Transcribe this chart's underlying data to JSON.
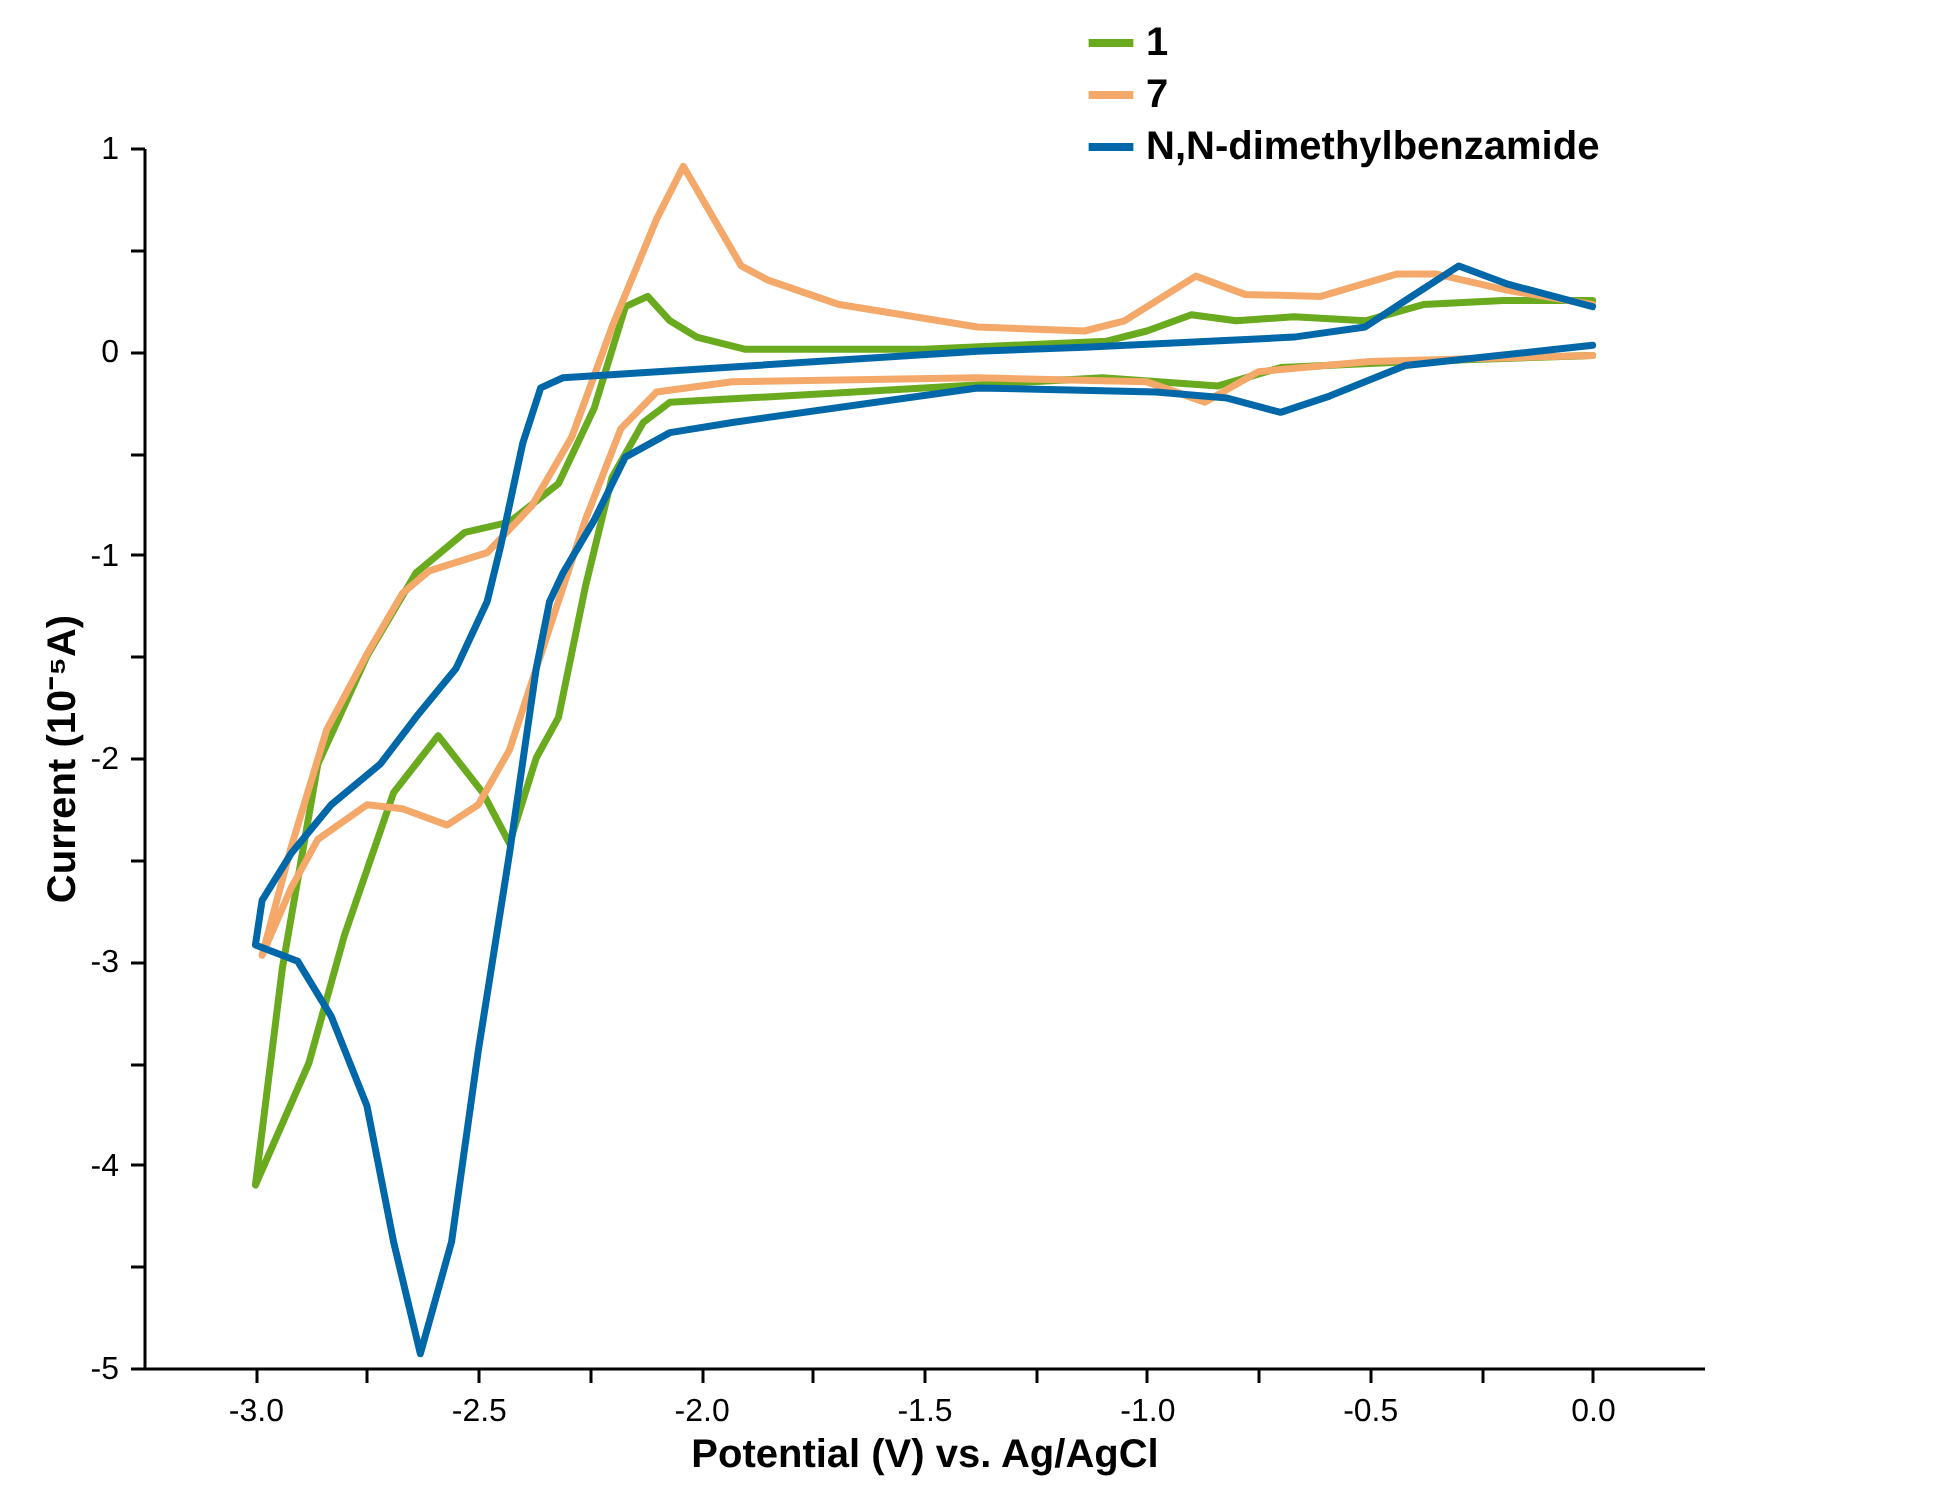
{
  "chart_data": {
    "type": "line",
    "xlabel": "Potential (V) vs. Ag/AgCl",
    "ylabel": "Current (10⁻⁵A)",
    "xlim": [
      -3.25,
      0.25
    ],
    "ylim": [
      -5,
      1
    ],
    "xticks": [
      {
        "value": -3,
        "label": "-3.0"
      },
      {
        "value": -2.75,
        "label": null
      },
      {
        "value": -2.5,
        "label": "-2.5"
      },
      {
        "value": -2.25,
        "label": null
      },
      {
        "value": -2,
        "label": "-2.0"
      },
      {
        "value": -1.75,
        "label": null
      },
      {
        "value": -1.5,
        "label": "-1.5"
      },
      {
        "value": -1.25,
        "label": null
      },
      {
        "value": -1,
        "label": "-1.0"
      },
      {
        "value": -0.75,
        "label": null
      },
      {
        "value": -0.5,
        "label": "-0.5"
      },
      {
        "value": -0.25,
        "label": null
      },
      {
        "value": 0,
        "label": "0.0"
      }
    ],
    "yticks": [
      {
        "value": -5,
        "label": "-5"
      },
      {
        "value": -4.5,
        "label": null
      },
      {
        "value": -4,
        "label": "-4"
      },
      {
        "value": -3.5,
        "label": null
      },
      {
        "value": -3,
        "label": "-3"
      },
      {
        "value": -2.5,
        "label": null
      },
      {
        "value": -2,
        "label": "-2"
      },
      {
        "value": -1.5,
        "label": null
      },
      {
        "value": -1,
        "label": "-1"
      },
      {
        "value": -0.5,
        "label": null
      },
      {
        "value": 0,
        "label": "0"
      },
      {
        "value": 0.5,
        "label": null
      },
      {
        "value": 1,
        "label": "1"
      }
    ],
    "grid": false,
    "legend": "top right",
    "marker": "none",
    "line_style": "solid",
    "series": [
      {
        "name": "1",
        "color": "#6aaa1e",
        "x": [
          0,
          -0.4,
          -0.7,
          -0.84,
          -1.1,
          -1.5,
          -1.9,
          -2.07,
          -2.13,
          -2.2,
          -2.26,
          -2.32,
          -2.37,
          -2.43,
          -2.49,
          -2.59,
          -2.69,
          -2.8,
          -2.88,
          -3.0,
          -2.94,
          -2.86,
          -2.75,
          -2.64,
          -2.53,
          -2.43,
          -2.32,
          -2.24,
          -2.17,
          -2.12,
          -2.07,
          -2.01,
          -1.9,
          -1.5,
          -1.09,
          -1.0,
          -0.9,
          -0.8,
          -0.67,
          -0.51,
          -0.38,
          -0.2,
          0
        ],
        "values": [
          -0.02,
          -0.05,
          -0.08,
          -0.17,
          -0.13,
          -0.18,
          -0.23,
          -0.25,
          -0.35,
          -0.62,
          -1.16,
          -1.8,
          -2.0,
          -2.42,
          -2.17,
          -1.89,
          -2.17,
          -2.87,
          -3.5,
          -4.1,
          -3.04,
          -2.03,
          -1.5,
          -1.09,
          -0.89,
          -0.84,
          -0.65,
          -0.28,
          0.22,
          0.27,
          0.15,
          0.07,
          0.01,
          0.01,
          0.05,
          0.1,
          0.18,
          0.15,
          0.17,
          0.15,
          0.23,
          0.25,
          0.25
        ]
      },
      {
        "name": "7",
        "color": "#f4a86a",
        "x": [
          0,
          -0.5,
          -0.75,
          -0.87,
          -1.0,
          -1.38,
          -1.93,
          -2.1,
          -2.18,
          -2.26,
          -2.34,
          -2.43,
          -2.5,
          -2.57,
          -2.67,
          -2.75,
          -2.86,
          -2.92,
          -2.985,
          -2.92,
          -2.84,
          -2.75,
          -2.67,
          -2.61,
          -2.48,
          -2.38,
          -2.29,
          -2.2,
          -2.1,
          -2.04,
          -1.91,
          -1.85,
          -1.69,
          -1.38,
          -1.14,
          -1.05,
          -0.89,
          -0.78,
          -0.61,
          -0.44,
          -0.35,
          -0.19,
          0
        ],
        "values": [
          -0.02,
          -0.05,
          -0.1,
          -0.25,
          -0.15,
          -0.13,
          -0.15,
          -0.2,
          -0.38,
          -0.83,
          -1.36,
          -1.96,
          -2.23,
          -2.33,
          -2.25,
          -2.23,
          -2.4,
          -2.64,
          -2.97,
          -2.44,
          -1.86,
          -1.49,
          -1.19,
          -1.08,
          -0.99,
          -0.76,
          -0.42,
          0.12,
          0.65,
          0.91,
          0.42,
          0.35,
          0.23,
          0.12,
          0.1,
          0.15,
          0.37,
          0.28,
          0.27,
          0.38,
          0.38,
          0.3,
          0.23
        ]
      },
      {
        "name": "N,N-dimethylbenzamide",
        "color": "#0068a8",
        "x": [
          0,
          -0.42,
          -0.59,
          -0.7,
          -0.82,
          -0.98,
          -1.38,
          -1.93,
          -2.07,
          -2.17,
          -2.24,
          -2.31,
          -2.34,
          -2.37,
          -2.43,
          -2.5,
          -2.56,
          -2.63,
          -2.69,
          -2.75,
          -2.83,
          -2.905,
          -3.0,
          -2.985,
          -2.92,
          -2.83,
          -2.72,
          -2.64,
          -2.55,
          -2.48,
          -2.45,
          -2.4,
          -2.36,
          -2.31,
          -1.38,
          -1.14,
          -0.67,
          -0.51,
          -0.42,
          -0.3,
          -0.19,
          0
        ],
        "values": [
          0.03,
          -0.07,
          -0.22,
          -0.3,
          -0.23,
          -0.2,
          -0.18,
          -0.35,
          -0.4,
          -0.52,
          -0.83,
          -1.09,
          -1.23,
          -1.56,
          -2.47,
          -3.44,
          -4.38,
          -4.93,
          -4.38,
          -3.71,
          -3.27,
          -3.0,
          -2.92,
          -2.7,
          -2.47,
          -2.23,
          -2.03,
          -1.8,
          -1.56,
          -1.23,
          -0.96,
          -0.45,
          -0.18,
          -0.13,
          0.0,
          0.02,
          0.07,
          0.12,
          0.25,
          0.42,
          0.33,
          0.22
        ]
      }
    ]
  }
}
